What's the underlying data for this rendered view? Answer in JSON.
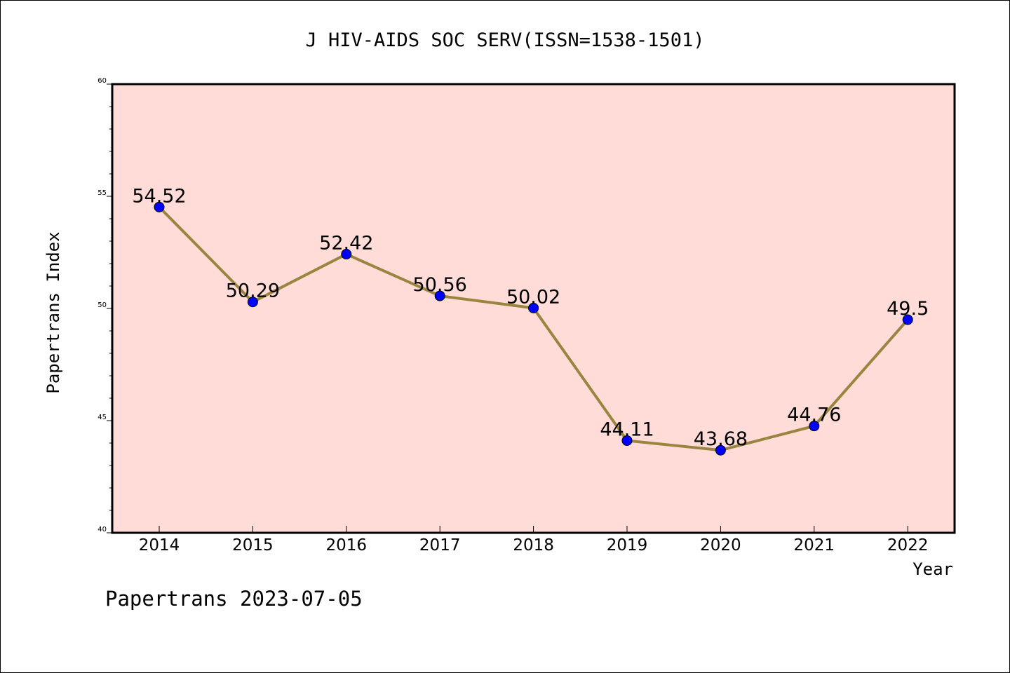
{
  "chart_data": {
    "type": "line",
    "title": "J HIV-AIDS SOC SERV(ISSN=1538-1501)",
    "xlabel": "Year",
    "ylabel": "Papertrans Index",
    "footer": "Papertrans 2023-07-05",
    "categories": [
      "2014",
      "2015",
      "2016",
      "2017",
      "2018",
      "2019",
      "2020",
      "2021",
      "2022"
    ],
    "values": [
      54.52,
      50.29,
      52.42,
      50.56,
      50.02,
      44.11,
      43.68,
      44.76,
      49.5
    ],
    "data_labels": [
      "54.52",
      "50.29",
      "52.42",
      "50.56",
      "50.02",
      "44.11",
      "43.68",
      "44.76",
      "49.5"
    ],
    "ylim": [
      40,
      60
    ],
    "yticks": [
      "40",
      "45",
      "50",
      "55",
      "60"
    ],
    "grid": false,
    "colors": {
      "plot_background": "#ffdcd8",
      "line": "#9a8540",
      "marker": "#0000ff",
      "axis": "#000000"
    }
  }
}
